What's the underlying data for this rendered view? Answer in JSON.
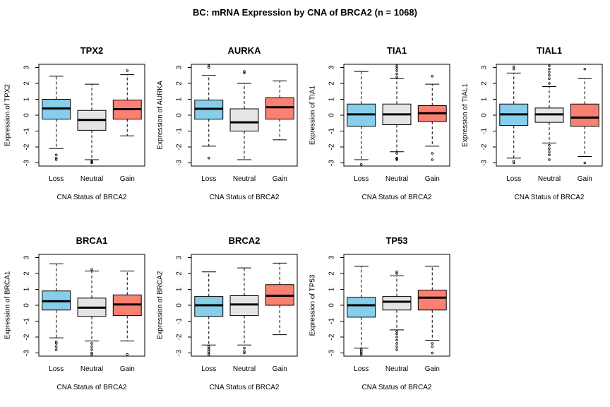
{
  "figure": {
    "title": "BC: mRNA Expression by CNA of BRCA2 (n = 1068)"
  },
  "colors": {
    "loss": "#87ceeb",
    "neutral": "#e5e5e5",
    "gain": "#fa8072"
  },
  "chart_data": [
    {
      "type": "boxplot",
      "title": "TPX2",
      "xlabel": "CNA Status of BRCA2",
      "ylabel": "Expression of TPX2",
      "categories": [
        "Loss",
        "Neutral",
        "Gain"
      ],
      "ylim": [
        -3.2,
        3.2
      ],
      "yticks": [
        -3,
        -2,
        -1,
        0,
        1,
        2,
        3
      ],
      "boxes": [
        {
          "min": -2.1,
          "q1": -0.25,
          "median": 0.42,
          "q3": 1.0,
          "max": 2.45,
          "outliers": [
            -2.5,
            -2.7,
            -2.8
          ]
        },
        {
          "min": -2.8,
          "q1": -0.95,
          "median": -0.3,
          "q3": 0.3,
          "max": 1.95,
          "outliers": [
            -2.9,
            -2.95,
            -3.0
          ]
        },
        {
          "min": -1.3,
          "q1": -0.25,
          "median": 0.38,
          "q3": 0.95,
          "max": 2.55,
          "outliers": [
            2.8
          ]
        }
      ]
    },
    {
      "type": "boxplot",
      "title": "AURKA",
      "xlabel": "CNA Status of BRCA2",
      "ylabel": "Expression of AURKA",
      "categories": [
        "Loss",
        "Neutral",
        "Gain"
      ],
      "ylim": [
        -3.2,
        3.2
      ],
      "yticks": [
        -3,
        -2,
        -1,
        0,
        1,
        2,
        3
      ],
      "boxes": [
        {
          "min": -1.95,
          "q1": -0.25,
          "median": 0.4,
          "q3": 0.95,
          "max": 2.5,
          "outliers": [
            3.0,
            3.1,
            -2.7
          ]
        },
        {
          "min": -2.8,
          "q1": -1.0,
          "median": -0.45,
          "q3": 0.4,
          "max": 2.0,
          "outliers": [
            2.65,
            2.75
          ]
        },
        {
          "min": -1.55,
          "q1": -0.25,
          "median": 0.5,
          "q3": 1.1,
          "max": 2.15,
          "outliers": []
        }
      ]
    },
    {
      "type": "boxplot",
      "title": "TIA1",
      "xlabel": "CNA Status of BRCA2",
      "ylabel": "Expression of TIA1",
      "categories": [
        "Loss",
        "Neutral",
        "Gain"
      ],
      "ylim": [
        -3.2,
        3.2
      ],
      "yticks": [
        -3,
        -2,
        -1,
        0,
        1,
        2,
        3
      ],
      "boxes": [
        {
          "min": -2.8,
          "q1": -0.7,
          "median": 0.05,
          "q3": 0.7,
          "max": 2.75,
          "outliers": [
            -3.1
          ]
        },
        {
          "min": -2.3,
          "q1": -0.6,
          "median": 0.05,
          "q3": 0.7,
          "max": 2.3,
          "outliers": [
            2.4,
            2.6,
            2.8,
            2.95,
            3.1,
            -2.4,
            -2.7,
            -2.75,
            -2.8
          ]
        },
        {
          "min": -1.95,
          "q1": -0.4,
          "median": 0.12,
          "q3": 0.6,
          "max": 1.95,
          "outliers": [
            2.45,
            -2.4,
            -2.8
          ]
        }
      ]
    },
    {
      "type": "boxplot",
      "title": "TIAL1",
      "xlabel": "CNA Status of BRCA2",
      "ylabel": "Expression of TIAL1",
      "categories": [
        "Loss",
        "Neutral",
        "Gain"
      ],
      "ylim": [
        -3.2,
        3.2
      ],
      "yticks": [
        -3,
        -2,
        -1,
        0,
        1,
        2,
        3
      ],
      "boxes": [
        {
          "min": -2.7,
          "q1": -0.65,
          "median": 0.05,
          "q3": 0.7,
          "max": 2.65,
          "outliers": [
            2.9,
            3.05,
            -2.9,
            -3.0
          ]
        },
        {
          "min": -1.75,
          "q1": -0.45,
          "median": 0.05,
          "q3": 0.45,
          "max": 1.8,
          "outliers": [
            2.0,
            2.3,
            2.5,
            2.7,
            2.9,
            3.1,
            -1.9,
            -2.1,
            -2.3,
            -2.5,
            -2.8
          ]
        },
        {
          "min": -2.6,
          "q1": -0.7,
          "median": -0.15,
          "q3": 0.7,
          "max": 2.3,
          "outliers": [
            2.9,
            -3.0
          ]
        }
      ]
    },
    {
      "type": "boxplot",
      "title": "BRCA1",
      "xlabel": "CNA Status of BRCA2",
      "ylabel": "Expression of BRCA1",
      "categories": [
        "Loss",
        "Neutral",
        "Gain"
      ],
      "ylim": [
        -3.2,
        3.2
      ],
      "yticks": [
        -3,
        -2,
        -1,
        0,
        1,
        2,
        3
      ],
      "boxes": [
        {
          "min": -2.05,
          "q1": -0.3,
          "median": 0.25,
          "q3": 0.9,
          "max": 2.6,
          "outliers": [
            -2.3,
            -2.4,
            -2.6,
            -2.8
          ]
        },
        {
          "min": -2.25,
          "q1": -0.7,
          "median": -0.15,
          "q3": 0.45,
          "max": 2.15,
          "outliers": [
            2.25,
            -2.4,
            -2.6,
            -2.8,
            -3.0,
            -3.1
          ]
        },
        {
          "min": -2.25,
          "q1": -0.65,
          "median": 0.05,
          "q3": 0.65,
          "max": 2.15,
          "outliers": [
            -3.1
          ]
        }
      ]
    },
    {
      "type": "boxplot",
      "title": "BRCA2",
      "xlabel": "CNA Status of BRCA2",
      "ylabel": "Expression of BRCA2",
      "categories": [
        "Loss",
        "Neutral",
        "Gain"
      ],
      "ylim": [
        -3.2,
        3.2
      ],
      "yticks": [
        -3,
        -2,
        -1,
        0,
        1,
        2,
        3
      ],
      "boxes": [
        {
          "min": -2.5,
          "q1": -0.7,
          "median": 0.0,
          "q3": 0.55,
          "max": 2.1,
          "outliers": [
            -2.6,
            -2.7,
            -2.8,
            -2.9,
            -3.0,
            -3.1
          ]
        },
        {
          "min": -2.5,
          "q1": -0.65,
          "median": 0.05,
          "q3": 0.6,
          "max": 2.35,
          "outliers": [
            -2.7,
            -2.9,
            -3.0
          ]
        },
        {
          "min": -1.85,
          "q1": 0.0,
          "median": 0.6,
          "q3": 1.3,
          "max": 2.65,
          "outliers": []
        }
      ]
    },
    {
      "type": "boxplot",
      "title": "TP53",
      "xlabel": "CNA Status of BRCA2",
      "ylabel": "Expression of TP53",
      "categories": [
        "Loss",
        "Neutral",
        "Gain"
      ],
      "ylim": [
        -3.2,
        3.2
      ],
      "yticks": [
        -3,
        -2,
        -1,
        0,
        1,
        2,
        3
      ],
      "boxes": [
        {
          "min": -2.7,
          "q1": -0.75,
          "median": 0.0,
          "q3": 0.5,
          "max": 2.45,
          "outliers": [
            -2.8,
            -2.9,
            -3.0,
            -3.1
          ]
        },
        {
          "min": -1.55,
          "q1": -0.3,
          "median": 0.22,
          "q3": 0.55,
          "max": 1.85,
          "outliers": [
            2.0,
            2.1,
            -1.65,
            -1.8,
            -2.0,
            -2.2,
            -2.4,
            -2.6,
            -2.8
          ]
        },
        {
          "min": -2.2,
          "q1": -0.3,
          "median": 0.48,
          "q3": 0.95,
          "max": 2.45,
          "outliers": [
            -2.4,
            -2.6,
            -3.0
          ]
        }
      ]
    }
  ]
}
